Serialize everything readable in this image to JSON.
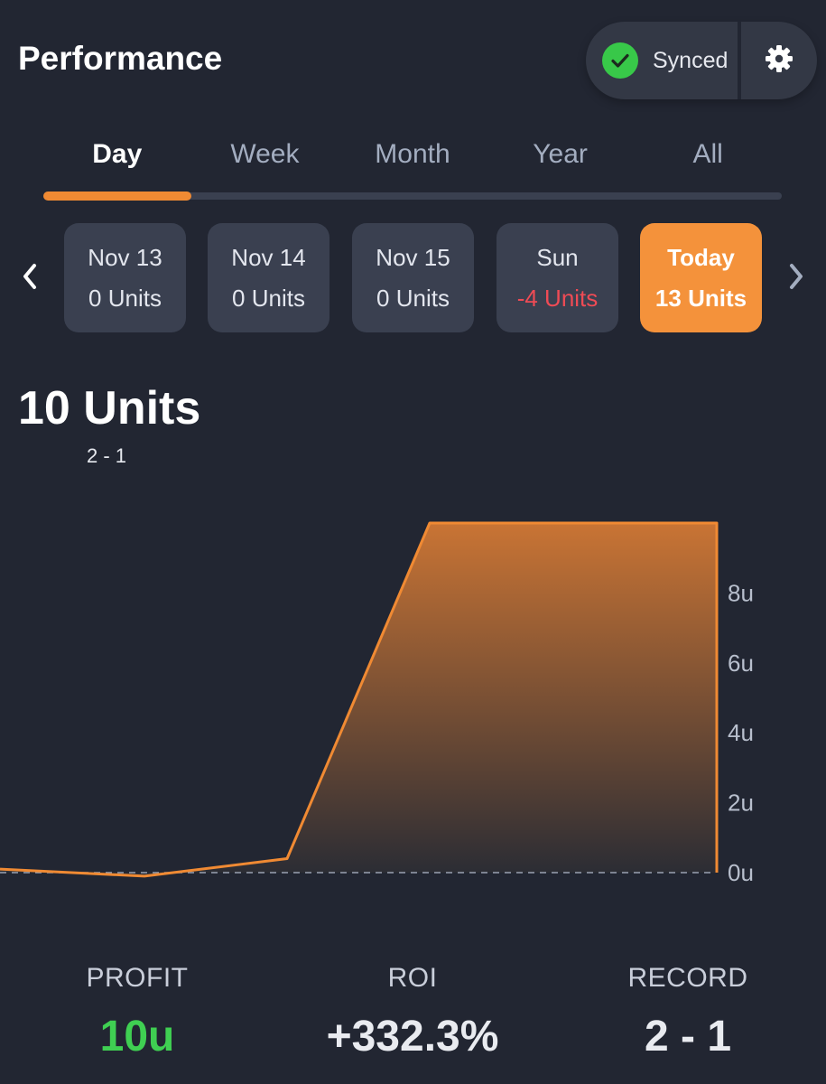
{
  "header": {
    "title": "Performance",
    "sync_label": "Synced"
  },
  "tabs": [
    {
      "label": "Day",
      "active": true
    },
    {
      "label": "Week",
      "active": false
    },
    {
      "label": "Month",
      "active": false
    },
    {
      "label": "Year",
      "active": false
    },
    {
      "label": "All",
      "active": false
    }
  ],
  "days": [
    {
      "label": "Nov 13",
      "units": "0 Units"
    },
    {
      "label": "Nov 14",
      "units": "0 Units"
    },
    {
      "label": "Nov 15",
      "units": "0 Units"
    },
    {
      "label": "Sun",
      "units": "-4 Units"
    },
    {
      "label": "Today",
      "units": "13 Units"
    }
  ],
  "summary": {
    "units": "10 Units",
    "record": "2 - 1"
  },
  "chart_data": {
    "type": "area",
    "x": [
      0,
      1,
      2,
      3,
      4
    ],
    "values": [
      0.1,
      -0.1,
      0.4,
      10,
      10
    ],
    "ylim": [
      0,
      10
    ],
    "yticks": [
      "0u",
      "2u",
      "4u",
      "6u",
      "8u"
    ],
    "ytick_values": [
      0,
      2,
      4,
      6,
      8
    ],
    "baseline_dashed": true,
    "colors": {
      "line": "#f08a33",
      "fill_top": "#c97434",
      "fill_bottom": "#2a2c34"
    }
  },
  "stats": {
    "profit_label": "PROFIT",
    "profit_value": "10u",
    "roi_label": "ROI",
    "roi_value": "+332.3%",
    "record_label": "RECORD",
    "record_value": "2 - 1"
  }
}
